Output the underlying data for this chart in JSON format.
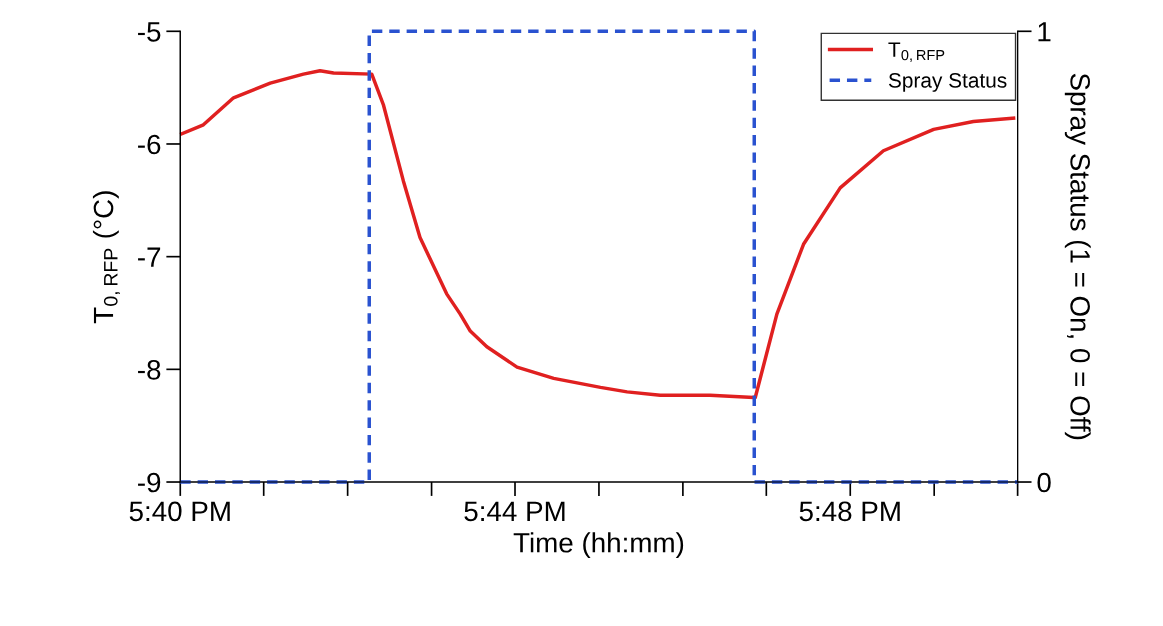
{
  "chart_data": {
    "type": "line",
    "xlabel": "Time (hh:mm)",
    "ylabel": "T$_{0,RFP}$ (°C)",
    "y2label": "Spray Status (1 = On, 0 = Off)",
    "xlim": [
      17.6667,
      17.8333
    ],
    "xticks": [
      {
        "value": 17.6667,
        "label": "5:40 PM"
      },
      {
        "value": 17.6833,
        "label": null
      },
      {
        "value": 17.7,
        "label": null
      },
      {
        "value": 17.7167,
        "label": null
      },
      {
        "value": 17.7333,
        "label": "5:44 PM"
      },
      {
        "value": 17.75,
        "label": null
      },
      {
        "value": 17.7667,
        "label": null
      },
      {
        "value": 17.7833,
        "label": null
      },
      {
        "value": 17.8,
        "label": "5:48 PM"
      },
      {
        "value": 17.8167,
        "label": null
      },
      {
        "value": 17.8333,
        "label": null
      }
    ],
    "ylim": [
      -9,
      -5
    ],
    "yticks": [
      -9,
      -8,
      -7,
      -6,
      -5
    ],
    "y2lim": [
      0,
      1
    ],
    "y2ticks": [
      0,
      1
    ],
    "legend": "top right",
    "grid": false,
    "series": [
      {
        "name": "T$_{0,RFP}$",
        "color": "#e02020",
        "line_style": "solid",
        "x": [
          17.667,
          17.6713,
          17.6773,
          17.6846,
          17.6912,
          17.6945,
          17.6972,
          17.7048,
          17.7071,
          17.7111,
          17.7144,
          17.7197,
          17.7224,
          17.7244,
          17.7277,
          17.7337,
          17.741,
          17.7503,
          17.7556,
          17.7622,
          17.7721,
          17.7808,
          17.7811,
          17.7854,
          17.7907,
          17.798,
          17.8066,
          17.8166,
          17.8245,
          17.8325
        ],
        "values": [
          -5.91,
          -5.83,
          -5.59,
          -5.46,
          -5.38,
          -5.35,
          -5.37,
          -5.38,
          -5.65,
          -6.33,
          -6.83,
          -7.33,
          -7.51,
          -7.66,
          -7.8,
          -7.98,
          -8.08,
          -8.16,
          -8.2,
          -8.23,
          -8.23,
          -8.25,
          -8.25,
          -7.51,
          -6.89,
          -6.39,
          -6.06,
          -5.87,
          -5.8,
          -5.77
        ]
      },
      {
        "name": "Spray Status",
        "color": "#2a52d0",
        "line_style": "dashed",
        "axis": "y2",
        "x": [
          17.6667,
          17.7043,
          17.7043,
          17.7809,
          17.7809,
          17.8333
        ],
        "values": [
          0,
          0,
          1,
          1,
          0,
          0
        ]
      }
    ]
  }
}
